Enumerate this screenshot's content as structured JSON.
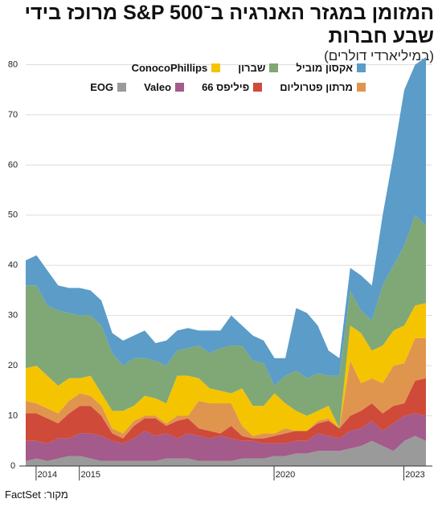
{
  "chart_data": {
    "type": "stacked-area",
    "title": [
      "המזומן במגזר האנרגיה ב־S&P 500 מרוכז בידי",
      "שבע חברות"
    ],
    "subtitle": "(במיליארדי דולרים)",
    "source": "מקור: FactSet",
    "categories": [
      null,
      null,
      "2014",
      null,
      null,
      null,
      "2015",
      null,
      null,
      null,
      null,
      null,
      null,
      null,
      null,
      null,
      null,
      null,
      null,
      null,
      null,
      null,
      null,
      null,
      "2020",
      null,
      null,
      null,
      null,
      null,
      null,
      null,
      null,
      null,
      null,
      null,
      "2023",
      null
    ],
    "ylim": [
      0,
      82
    ],
    "yticks": [
      0,
      10,
      20,
      30,
      40,
      50,
      60,
      70,
      80
    ],
    "grid": true,
    "series": [
      {
        "name": "אקסון מוביל",
        "color": "#5b9cc9",
        "values": [
          5,
          6,
          7,
          5,
          5,
          5.5,
          5,
          5,
          4,
          5,
          4.5,
          5.5,
          3.5,
          5,
          4,
          4,
          3,
          4.5,
          3.5,
          6,
          4,
          5,
          4.5,
          5.5,
          3.5,
          12.5,
          13,
          9.5,
          5,
          3.5,
          4.5,
          7,
          7,
          14,
          22,
          31,
          30,
          33.5
        ]
      },
      {
        "name": "שברון",
        "color": "#7fa876",
        "values": [
          16.5,
          16,
          14,
          15,
          13,
          12.5,
          12,
          13.5,
          11.5,
          9,
          9.5,
          7.5,
          7.5,
          7.5,
          5,
          5.5,
          6.5,
          7,
          8.5,
          9.5,
          8.5,
          9,
          8.5,
          1.5,
          5.5,
          8,
          7.5,
          7.5,
          6,
          10.5,
          7,
          4.5,
          6,
          12,
          13,
          16,
          18,
          15.5
        ]
      },
      {
        "name": "ConocoPhillips",
        "color": "#f5c400",
        "values": [
          6.5,
          7.5,
          6.5,
          5.5,
          4.5,
          3,
          4,
          2.5,
          3.5,
          4.5,
          3,
          4,
          3.5,
          4,
          8,
          8,
          4.5,
          3,
          2.5,
          2,
          7.5,
          6,
          5.5,
          8,
          5,
          4,
          3,
          2,
          2.5,
          0,
          7,
          10,
          5.5,
          7.5,
          7,
          7.5,
          6.5,
          7
        ]
      },
      {
        "name": "מרתון פטרוליום",
        "color": "#e0954e",
        "values": [
          2.5,
          2,
          2,
          2,
          2.5,
          2.5,
          2,
          2,
          1,
          1,
          1,
          0.5,
          0.5,
          0.5,
          1,
          0.5,
          5.5,
          5.5,
          6,
          4.5,
          2,
          0.5,
          1,
          0.5,
          1,
          0,
          0,
          0.5,
          0.5,
          0,
          11,
          5.5,
          5,
          6,
          8,
          8,
          8.5,
          8
        ]
      },
      {
        "name": "פיליפס 66",
        "color": "#d04a3a",
        "values": [
          5.5,
          5.5,
          5,
          3,
          5,
          5.5,
          5.5,
          4,
          1.5,
          1,
          2.5,
          2.5,
          3.5,
          1.5,
          3.5,
          3,
          1.5,
          1.5,
          0.5,
          2.5,
          1,
          0.5,
          1,
          1.5,
          2,
          2,
          2,
          2,
          3,
          2,
          3,
          3.5,
          3.5,
          3.5,
          3.5,
          2.5,
          6.5,
          7.5
        ]
      },
      {
        "name": "Valeo",
        "color": "#a45a8a",
        "values": [
          4,
          3.5,
          3.5,
          4,
          3.5,
          4.5,
          5,
          5,
          4,
          3.5,
          4.5,
          6,
          5,
          5,
          4,
          5,
          5,
          4.5,
          5,
          4.5,
          3.5,
          3.5,
          3,
          2.5,
          2.5,
          2.5,
          2.5,
          3.5,
          3,
          2.5,
          3.5,
          3.5,
          4,
          3,
          5.5,
          5,
          4.5,
          5
        ]
      },
      {
        "name": "EOG",
        "color": "#9a9a9a",
        "values": [
          1,
          1.5,
          1,
          1.5,
          2,
          2,
          1.5,
          1,
          1,
          1,
          1,
          1,
          1,
          1.5,
          1.5,
          1.5,
          1,
          1,
          1,
          1,
          1.5,
          1.5,
          1.5,
          2,
          2,
          2.5,
          2.5,
          3,
          3,
          3,
          3.5,
          4,
          5,
          4,
          3,
          5,
          6,
          5
        ]
      }
    ]
  }
}
